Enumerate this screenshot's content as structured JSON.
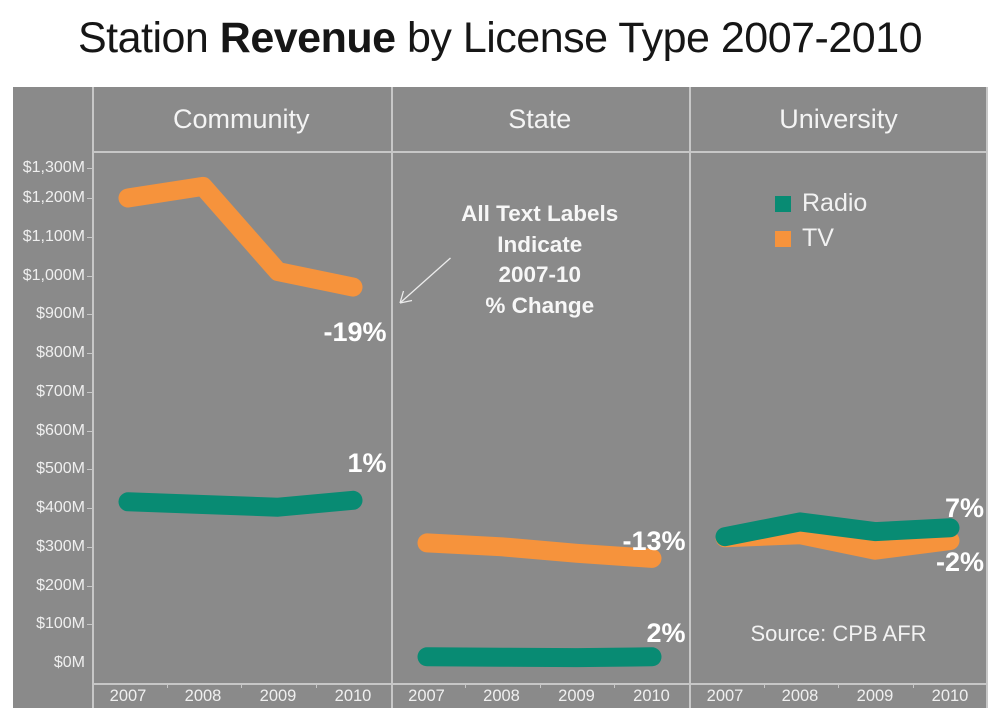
{
  "title": {
    "pre": "Station ",
    "bold": "Revenue",
    "post": " by License Type 2007-2010"
  },
  "colors": {
    "background": "#8a8a8a",
    "radio": "#088b73",
    "tv": "#f6933c",
    "grid": "#c7c7c7",
    "percent_label_text": "#ffffff",
    "axis_text": "#efefef",
    "title_text": "#161616"
  },
  "legend": {
    "items": [
      {
        "label": "Radio",
        "color_key": "radio"
      },
      {
        "label": "TV",
        "color_key": "tv"
      }
    ]
  },
  "annotation": {
    "lines": [
      "All Text Labels",
      "Indicate",
      "2007-10",
      "% Change"
    ]
  },
  "source": "Source: CPB AFR",
  "y_axis": {
    "ticks": [
      {
        "label": "$1,300M",
        "value": 1300
      },
      {
        "label": "$1,200M",
        "value": 1200
      },
      {
        "label": "$1,100M",
        "value": 1100
      },
      {
        "label": "$1,000M",
        "value": 1000
      },
      {
        "label": "$900M",
        "value": 900
      },
      {
        "label": "$800M",
        "value": 800
      },
      {
        "label": "$700M",
        "value": 700
      },
      {
        "label": "$600M",
        "value": 600
      },
      {
        "label": "$500M",
        "value": 500
      },
      {
        "label": "$400M",
        "value": 400
      },
      {
        "label": "$300M",
        "value": 300
      },
      {
        "label": "$200M",
        "value": 200
      },
      {
        "label": "$100M",
        "value": 100
      },
      {
        "label": "$0M",
        "value": 0
      }
    ]
  },
  "x_axis": {
    "years": [
      "2007",
      "2008",
      "2009",
      "2010"
    ]
  },
  "chart_data": {
    "type": "line",
    "title": "Station Revenue by License Type 2007-2010",
    "unit": "USD millions",
    "x": [
      2007,
      2008,
      2009,
      2010
    ],
    "ylim": [
      0,
      1300
    ],
    "legend_position": "top-right-of-university-panel",
    "grid": false,
    "panels": [
      {
        "name": "Community",
        "series": [
          {
            "name": "TV",
            "values": [
              1200,
              1230,
              1010,
              970
            ],
            "pct_change_label": "-19%"
          },
          {
            "name": "Radio",
            "values": [
              416,
              409,
              402,
              420
            ],
            "pct_change_label": "1%"
          }
        ]
      },
      {
        "name": "State",
        "series": [
          {
            "name": "TV",
            "values": [
              310,
              300,
              283,
              270
            ],
            "pct_change_label": "-13%"
          },
          {
            "name": "Radio",
            "values": [
              16,
              15,
              14,
              16
            ],
            "pct_change_label": "2%"
          }
        ]
      },
      {
        "name": "University",
        "series": [
          {
            "name": "TV",
            "values": [
              323,
              331,
              291,
              316
            ],
            "pct_change_label": "-2%"
          },
          {
            "name": "Radio",
            "values": [
              326,
              364,
              339,
              349
            ],
            "pct_change_label": "7%"
          }
        ]
      }
    ]
  }
}
